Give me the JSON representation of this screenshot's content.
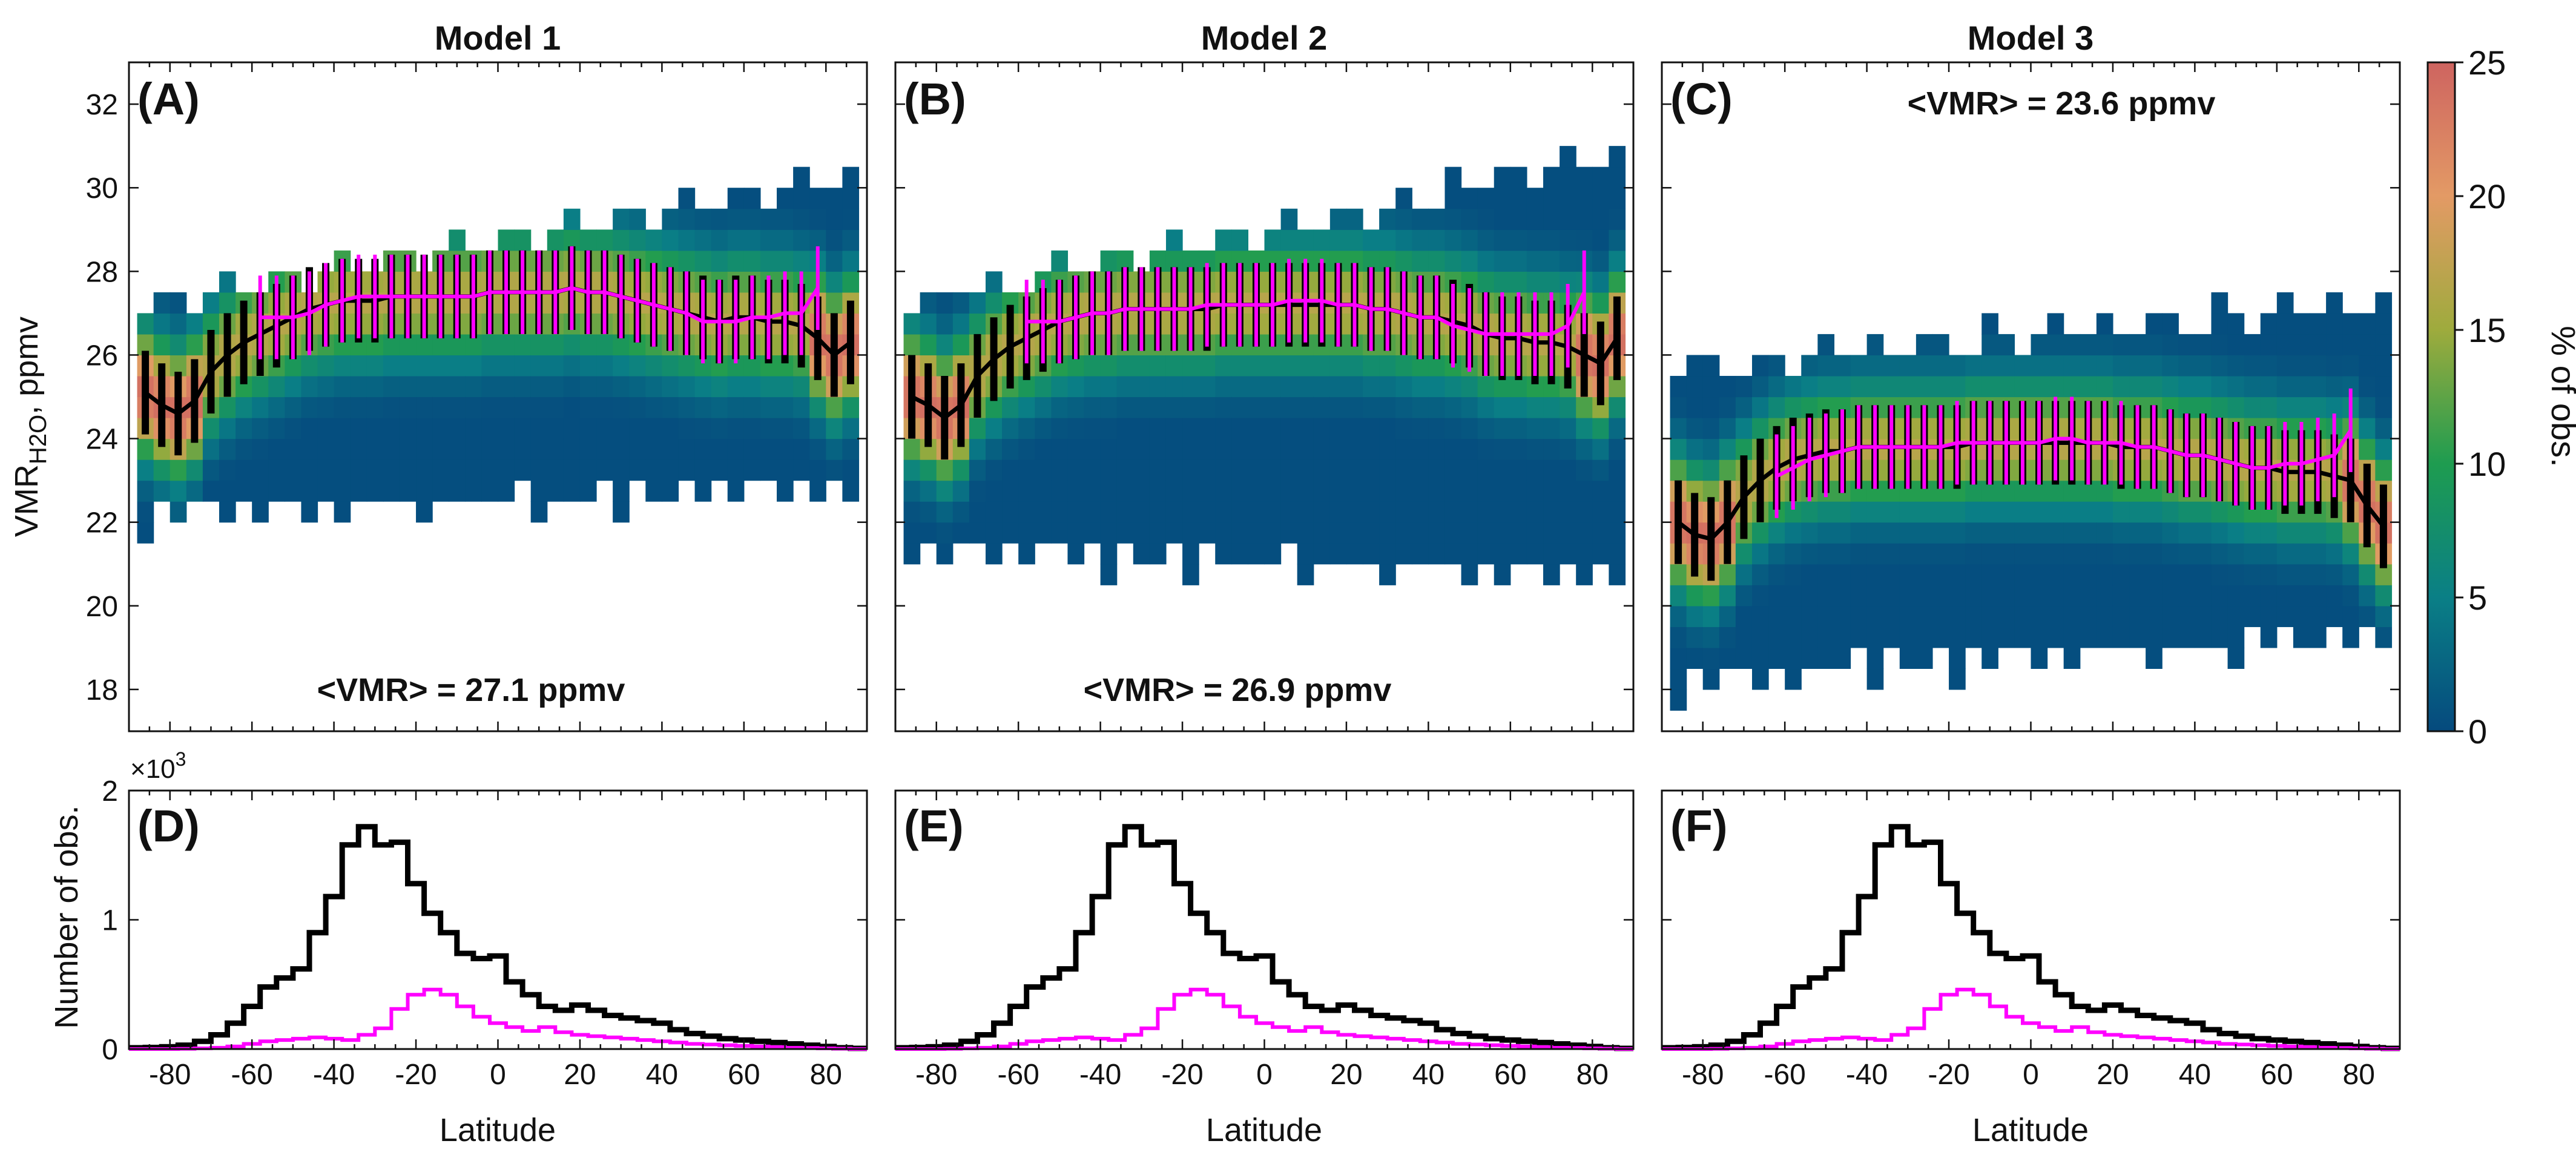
{
  "chart_data": {
    "type": "heatmap",
    "colorbar": {
      "label": "% of obs.",
      "range": [
        0,
        25
      ],
      "ticks": [
        "0",
        "5",
        "10",
        "15",
        "20",
        "25"
      ],
      "colors": [
        "#054a7e",
        "#0a7f86",
        "#1e9c50",
        "#9eab3d",
        "#e39a65",
        "#ce6460"
      ]
    },
    "top_ylabel_main": "VMR",
    "top_ylabel_sub": "H2O",
    "top_ylabel_unit": ", ppmv",
    "top_ylim": [
      17,
      33
    ],
    "top_yticks": [
      "18",
      "20",
      "22",
      "24",
      "26",
      "28",
      "30",
      "32"
    ],
    "bottom_ylabel": "Number of obs.",
    "bottom_ylim": [
      0,
      2000
    ],
    "bottom_yticks": [
      "0",
      "1",
      "2"
    ],
    "bottom_multiplier_base": "×10",
    "bottom_multiplier_exp": "3",
    "xlabel": "Latitude",
    "xlim": [
      -90,
      90
    ],
    "xticks": [
      "-80",
      "-60",
      "-40",
      "-20",
      "0",
      "20",
      "40",
      "60",
      "80"
    ],
    "series_colors": {
      "all": "#000000",
      "subset": "#ff00ff"
    },
    "panels": [
      {
        "column_title": "Model 1",
        "letter": "(A)",
        "annotation": "<VMR> = 27.1 ppmv",
        "annotation_pos": "bottom-center",
        "median": 27.1
      },
      {
        "column_title": "Model 2",
        "letter": "(B)",
        "annotation": "<VMR> = 26.9 ppmv",
        "annotation_pos": "bottom-center",
        "median": 26.9
      },
      {
        "column_title": "Model 3",
        "letter": "(C)",
        "annotation": "<VMR> = 23.6 ppmv",
        "annotation_pos": "top-center",
        "median": 23.6
      }
    ],
    "count_panels": [
      {
        "letter": "(D)"
      },
      {
        "letter": "(E)"
      },
      {
        "letter": "(F)"
      }
    ],
    "counts_all": {
      "x": [
        -88,
        -84,
        -80,
        -76,
        -72,
        -68,
        -64,
        -60,
        -56,
        -52,
        -48,
        -44,
        -40,
        -36,
        -32,
        -28,
        -24,
        -20,
        -16,
        -12,
        -8,
        -4,
        0,
        4,
        8,
        12,
        16,
        20,
        24,
        28,
        32,
        36,
        40,
        44,
        48,
        52,
        56,
        60,
        64,
        68,
        72,
        76,
        80,
        84,
        88
      ],
      "y": [
        10,
        12,
        18,
        30,
        60,
        110,
        200,
        330,
        480,
        550,
        620,
        900,
        1180,
        1580,
        1720,
        1580,
        1600,
        1280,
        1050,
        900,
        740,
        700,
        720,
        520,
        420,
        330,
        300,
        340,
        300,
        260,
        240,
        220,
        200,
        150,
        120,
        100,
        80,
        70,
        60,
        50,
        40,
        30,
        20,
        10,
        5
      ]
    },
    "counts_subset": {
      "x": [
        -88,
        -84,
        -80,
        -76,
        -72,
        -68,
        -64,
        -60,
        -56,
        -52,
        -48,
        -44,
        -40,
        -36,
        -32,
        -28,
        -24,
        -20,
        -16,
        -12,
        -8,
        -4,
        0,
        4,
        8,
        12,
        16,
        20,
        24,
        28,
        32,
        36,
        40,
        44,
        48,
        52,
        56,
        60,
        64,
        68,
        72,
        76,
        80,
        84,
        88
      ],
      "y": [
        0,
        0,
        0,
        2,
        5,
        10,
        20,
        40,
        60,
        70,
        80,
        90,
        80,
        70,
        110,
        160,
        310,
        420,
        460,
        420,
        330,
        250,
        200,
        170,
        140,
        170,
        130,
        110,
        100,
        90,
        80,
        70,
        60,
        50,
        40,
        35,
        30,
        25,
        20,
        15,
        10,
        8,
        5,
        3,
        0
      ]
    },
    "lat_bins": [
      -86,
      -82,
      -78,
      -74,
      -70,
      -66,
      -62,
      -58,
      -54,
      -50,
      -46,
      -42,
      -38,
      -34,
      -30,
      -26,
      -22,
      -18,
      -14,
      -10,
      -6,
      -2,
      2,
      6,
      10,
      14,
      18,
      22,
      26,
      30,
      34,
      38,
      42,
      46,
      50,
      54,
      58,
      62,
      66,
      70,
      74,
      78,
      82,
      86
    ],
    "mean_all": [
      [
        25.1,
        24.8,
        24.6,
        24.9,
        25.6,
        26.0,
        26.3,
        26.5,
        26.7,
        26.9,
        27.1,
        27.2,
        27.3,
        27.3,
        27.3,
        27.4,
        27.4,
        27.4,
        27.4,
        27.4,
        27.4,
        27.5,
        27.5,
        27.5,
        27.5,
        27.5,
        27.6,
        27.5,
        27.5,
        27.4,
        27.3,
        27.2,
        27.1,
        27.0,
        26.9,
        26.8,
        26.9,
        26.9,
        26.8,
        26.8,
        26.7,
        26.4,
        26.0,
        26.3
      ],
      [
        25.0,
        24.8,
        24.5,
        24.8,
        25.5,
        25.9,
        26.2,
        26.4,
        26.6,
        26.8,
        26.9,
        27.0,
        27.0,
        27.1,
        27.1,
        27.1,
        27.1,
        27.1,
        27.1,
        27.2,
        27.2,
        27.2,
        27.2,
        27.2,
        27.2,
        27.2,
        27.2,
        27.2,
        27.1,
        27.1,
        27.0,
        26.9,
        26.9,
        26.8,
        26.7,
        26.5,
        26.4,
        26.4,
        26.3,
        26.3,
        26.2,
        26.0,
        25.8,
        26.4
      ],
      [
        22.0,
        21.7,
        21.6,
        22.0,
        22.6,
        23.0,
        23.3,
        23.5,
        23.6,
        23.7,
        23.7,
        23.8,
        23.8,
        23.8,
        23.8,
        23.8,
        23.8,
        23.8,
        23.9,
        23.9,
        23.9,
        23.9,
        23.9,
        23.9,
        23.9,
        23.9,
        23.9,
        23.8,
        23.8,
        23.8,
        23.7,
        23.6,
        23.6,
        23.5,
        23.4,
        23.3,
        23.3,
        23.2,
        23.2,
        23.2,
        23.1,
        23.0,
        22.4,
        21.9
      ]
    ],
    "mean_subset": [
      [
        null,
        null,
        null,
        null,
        null,
        null,
        null,
        26.9,
        26.9,
        26.9,
        27.0,
        27.2,
        27.3,
        27.4,
        27.4,
        27.4,
        27.4,
        27.4,
        27.4,
        27.4,
        27.4,
        27.5,
        27.5,
        27.5,
        27.5,
        27.5,
        27.6,
        27.5,
        27.5,
        27.4,
        27.3,
        27.2,
        27.1,
        27.0,
        26.8,
        26.8,
        26.8,
        26.9,
        26.9,
        27.0,
        27.0,
        27.6,
        null,
        null
      ],
      [
        null,
        null,
        null,
        null,
        null,
        null,
        null,
        26.8,
        26.8,
        26.8,
        26.9,
        27.0,
        27.0,
        27.1,
        27.1,
        27.1,
        27.1,
        27.1,
        27.2,
        27.2,
        27.2,
        27.2,
        27.2,
        27.3,
        27.3,
        27.3,
        27.2,
        27.2,
        27.1,
        27.1,
        27.0,
        26.9,
        26.9,
        26.7,
        26.6,
        26.5,
        26.5,
        26.5,
        26.5,
        26.5,
        26.7,
        27.5,
        null,
        null
      ],
      [
        null,
        null,
        null,
        null,
        null,
        null,
        23.1,
        23.3,
        23.5,
        23.6,
        23.7,
        23.8,
        23.8,
        23.8,
        23.8,
        23.8,
        23.8,
        23.9,
        23.9,
        23.9,
        23.9,
        23.9,
        23.9,
        24.0,
        24.0,
        23.9,
        23.9,
        23.9,
        23.8,
        23.8,
        23.7,
        23.6,
        23.6,
        23.5,
        23.4,
        23.3,
        23.3,
        23.4,
        23.4,
        23.5,
        23.6,
        24.2,
        null,
        null
      ]
    ],
    "error_bar_halfwidth": 1.0,
    "heat_extent": [
      {
        "lat": [
          -85,
          85
        ],
        "vmr_low": [
          22,
          22.5
        ],
        "vmr_high": [
          27.5,
          30.5
        ],
        "peak_vmr": [
          25.0,
          27.5
        ]
      },
      {
        "lat": [
          -85,
          85
        ],
        "vmr_low": [
          21,
          20.5
        ],
        "vmr_high": [
          27.5,
          31
        ],
        "peak_vmr": [
          25.0,
          27.1
        ]
      },
      {
        "lat": [
          -85,
          85
        ],
        "vmr_low": [
          18,
          19
        ],
        "vmr_high": [
          26,
          27.5
        ],
        "peak_vmr": [
          22.0,
          23.8
        ]
      }
    ]
  }
}
